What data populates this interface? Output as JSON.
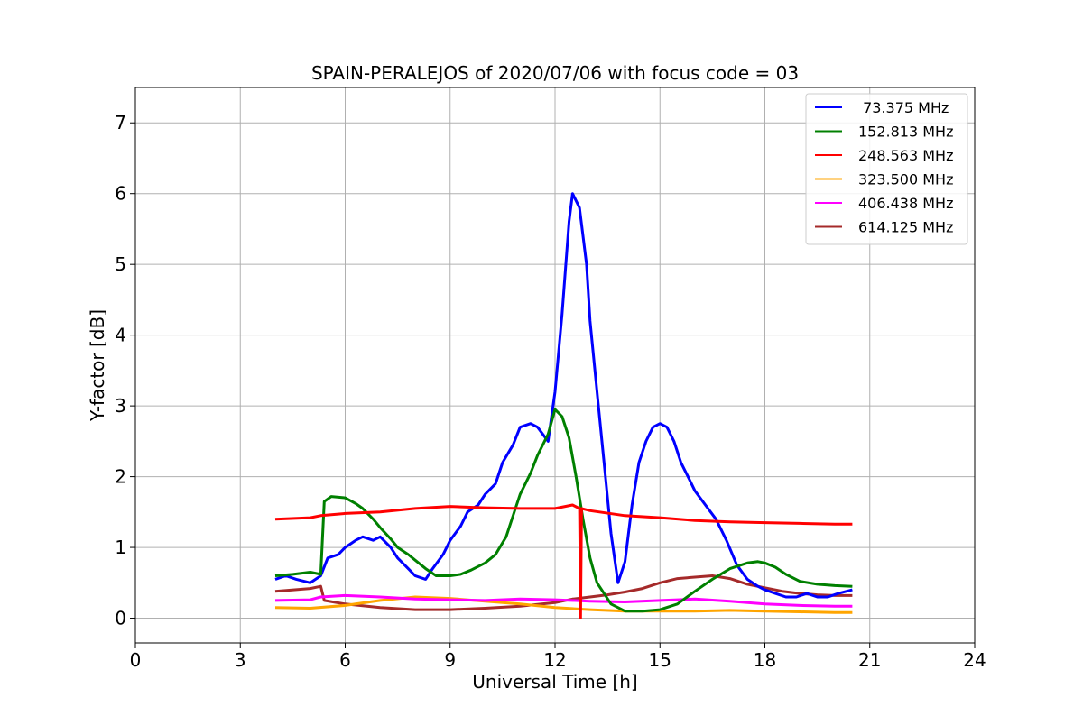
{
  "chart_data": {
    "type": "line",
    "title": "SPAIN-PERALEJOS of 2020/07/06 with focus code = 03",
    "xlabel": "Universal Time [h]",
    "ylabel": "Y-factor [dB]",
    "xlim": [
      0,
      24
    ],
    "ylim": [
      -0.35,
      7.5
    ],
    "xticks": [
      0,
      3,
      6,
      9,
      12,
      15,
      18,
      21,
      24
    ],
    "yticks": [
      0,
      1,
      2,
      3,
      4,
      5,
      6,
      7
    ],
    "grid": true,
    "legend_position": "top-right",
    "x_range_of_data": [
      4.0,
      20.5
    ],
    "series": [
      {
        "name": " 73.375 MHz",
        "color": "#0000ff",
        "x": [
          4.0,
          4.3,
          4.6,
          5.0,
          5.3,
          5.5,
          5.8,
          6.0,
          6.3,
          6.5,
          6.8,
          7.0,
          7.3,
          7.5,
          7.8,
          8.0,
          8.3,
          8.5,
          8.8,
          9.0,
          9.3,
          9.5,
          9.8,
          10.0,
          10.3,
          10.5,
          10.8,
          11.0,
          11.3,
          11.5,
          11.8,
          12.0,
          12.2,
          12.4,
          12.5,
          12.7,
          12.9,
          13.0,
          13.2,
          13.4,
          13.6,
          13.8,
          14.0,
          14.2,
          14.4,
          14.6,
          14.8,
          15.0,
          15.2,
          15.4,
          15.6,
          15.8,
          16.0,
          16.3,
          16.6,
          16.9,
          17.2,
          17.5,
          17.8,
          18.0,
          18.3,
          18.6,
          18.9,
          19.2,
          19.5,
          19.8,
          20.1,
          20.5
        ],
        "y": [
          0.55,
          0.6,
          0.55,
          0.5,
          0.6,
          0.85,
          0.9,
          1.0,
          1.1,
          1.15,
          1.1,
          1.15,
          1.0,
          0.85,
          0.7,
          0.6,
          0.55,
          0.7,
          0.9,
          1.1,
          1.3,
          1.5,
          1.6,
          1.75,
          1.9,
          2.2,
          2.45,
          2.7,
          2.75,
          2.7,
          2.5,
          3.2,
          4.3,
          5.6,
          6.0,
          5.8,
          5.0,
          4.2,
          3.2,
          2.2,
          1.2,
          0.5,
          0.8,
          1.6,
          2.2,
          2.5,
          2.7,
          2.75,
          2.7,
          2.5,
          2.2,
          2.0,
          1.8,
          1.6,
          1.4,
          1.1,
          0.75,
          0.55,
          0.45,
          0.4,
          0.35,
          0.3,
          0.3,
          0.35,
          0.3,
          0.3,
          0.35,
          0.4
        ]
      },
      {
        "name": "152.813 MHz",
        "color": "#008000",
        "x": [
          4.0,
          4.5,
          5.0,
          5.3,
          5.4,
          5.6,
          6.0,
          6.3,
          6.5,
          6.8,
          7.0,
          7.3,
          7.5,
          7.8,
          8.0,
          8.3,
          8.6,
          9.0,
          9.3,
          9.6,
          10.0,
          10.3,
          10.6,
          10.8,
          11.0,
          11.3,
          11.5,
          11.8,
          12.0,
          12.2,
          12.4,
          12.6,
          12.8,
          13.0,
          13.2,
          13.4,
          13.6,
          14.0,
          14.5,
          15.0,
          15.5,
          16.0,
          16.5,
          17.0,
          17.5,
          17.8,
          18.0,
          18.3,
          18.6,
          19.0,
          19.5,
          20.0,
          20.5
        ],
        "y": [
          0.6,
          0.62,
          0.65,
          0.62,
          1.65,
          1.72,
          1.7,
          1.62,
          1.55,
          1.4,
          1.28,
          1.12,
          1.0,
          0.9,
          0.82,
          0.7,
          0.6,
          0.6,
          0.62,
          0.68,
          0.78,
          0.9,
          1.15,
          1.45,
          1.75,
          2.05,
          2.3,
          2.6,
          2.95,
          2.85,
          2.55,
          2.0,
          1.4,
          0.85,
          0.5,
          0.35,
          0.2,
          0.1,
          0.1,
          0.12,
          0.2,
          0.38,
          0.55,
          0.7,
          0.78,
          0.8,
          0.78,
          0.72,
          0.62,
          0.52,
          0.48,
          0.46,
          0.45
        ]
      },
      {
        "name": "248.563 MHz",
        "color": "#ff0000",
        "x": [
          4.0,
          5.0,
          5.3,
          6.0,
          7.0,
          8.0,
          9.0,
          10.0,
          11.0,
          12.0,
          12.5,
          12.7,
          12.73,
          12.76,
          13.0,
          14.0,
          15.0,
          16.0,
          17.0,
          18.0,
          19.0,
          20.0,
          20.5
        ],
        "y": [
          1.4,
          1.42,
          1.45,
          1.48,
          1.5,
          1.55,
          1.58,
          1.56,
          1.55,
          1.55,
          1.6,
          1.55,
          0.0,
          1.55,
          1.52,
          1.45,
          1.42,
          1.38,
          1.36,
          1.35,
          1.34,
          1.33,
          1.33
        ]
      },
      {
        "name": "323.500 MHz",
        "color": "#ffa500",
        "x": [
          4.0,
          5.0,
          6.0,
          7.0,
          8.0,
          9.0,
          10.0,
          11.0,
          12.0,
          13.0,
          14.0,
          15.0,
          16.0,
          17.0,
          18.0,
          19.0,
          20.0,
          20.5
        ],
        "y": [
          0.15,
          0.14,
          0.18,
          0.25,
          0.3,
          0.28,
          0.24,
          0.2,
          0.15,
          0.12,
          0.1,
          0.1,
          0.1,
          0.11,
          0.1,
          0.09,
          0.08,
          0.08
        ]
      },
      {
        "name": "406.438 MHz",
        "color": "#ff00ff",
        "x": [
          4.0,
          5.0,
          5.3,
          6.0,
          7.0,
          8.0,
          9.0,
          10.0,
          11.0,
          12.0,
          13.0,
          14.0,
          15.0,
          16.0,
          17.0,
          18.0,
          19.0,
          20.0,
          20.5
        ],
        "y": [
          0.25,
          0.26,
          0.3,
          0.32,
          0.3,
          0.27,
          0.26,
          0.25,
          0.27,
          0.26,
          0.24,
          0.23,
          0.25,
          0.27,
          0.24,
          0.2,
          0.18,
          0.17,
          0.17
        ]
      },
      {
        "name": "614.125 MHz",
        "color": "#a52a2a",
        "x": [
          4.0,
          5.0,
          5.3,
          5.4,
          6.0,
          7.0,
          8.0,
          9.0,
          10.0,
          11.0,
          12.0,
          12.5,
          13.0,
          13.5,
          14.0,
          14.5,
          15.0,
          15.5,
          16.0,
          16.5,
          17.0,
          17.5,
          18.0,
          18.5,
          19.0,
          19.5,
          20.0,
          20.5
        ],
        "y": [
          0.38,
          0.42,
          0.45,
          0.25,
          0.2,
          0.15,
          0.12,
          0.12,
          0.14,
          0.17,
          0.22,
          0.27,
          0.3,
          0.33,
          0.37,
          0.42,
          0.5,
          0.56,
          0.58,
          0.6,
          0.56,
          0.48,
          0.43,
          0.38,
          0.35,
          0.33,
          0.32,
          0.32
        ]
      }
    ]
  }
}
